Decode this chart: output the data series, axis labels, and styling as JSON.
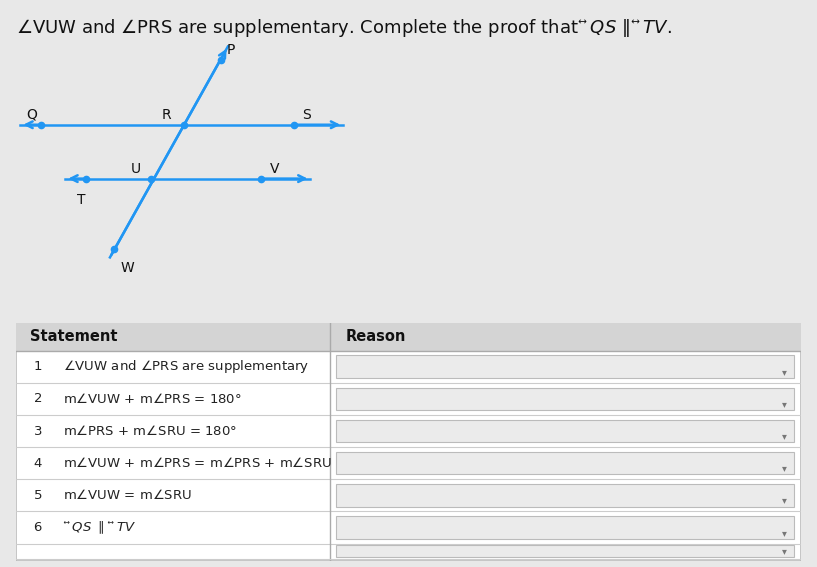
{
  "bg_color": "#e8e8e8",
  "line_color": "#2196f3",
  "dot_color": "#2196f3",
  "title_fontsize": 13,
  "table_header_bg": "#d0d0d0",
  "table_border_color": "#bbbbbb",
  "table_input_bg": "#ebebeb",
  "col_split": 0.4,
  "stmt_texts": [
    "\\angle VUW and \\angle PRS are supplementary",
    "m\\angle VUW + m\\angle PRS = 180\\degree",
    "m\\angle PRS + m\\angle SRU = 180\\degree",
    "m\\angle VUW + m\\angle PRS = m\\angle PRS + m\\angle SRU",
    "m\\angle VUW = m\\angle SRU",
    "\\overleftrightarrow{QS} \\parallel \\overleftrightarrow{TV}"
  ]
}
